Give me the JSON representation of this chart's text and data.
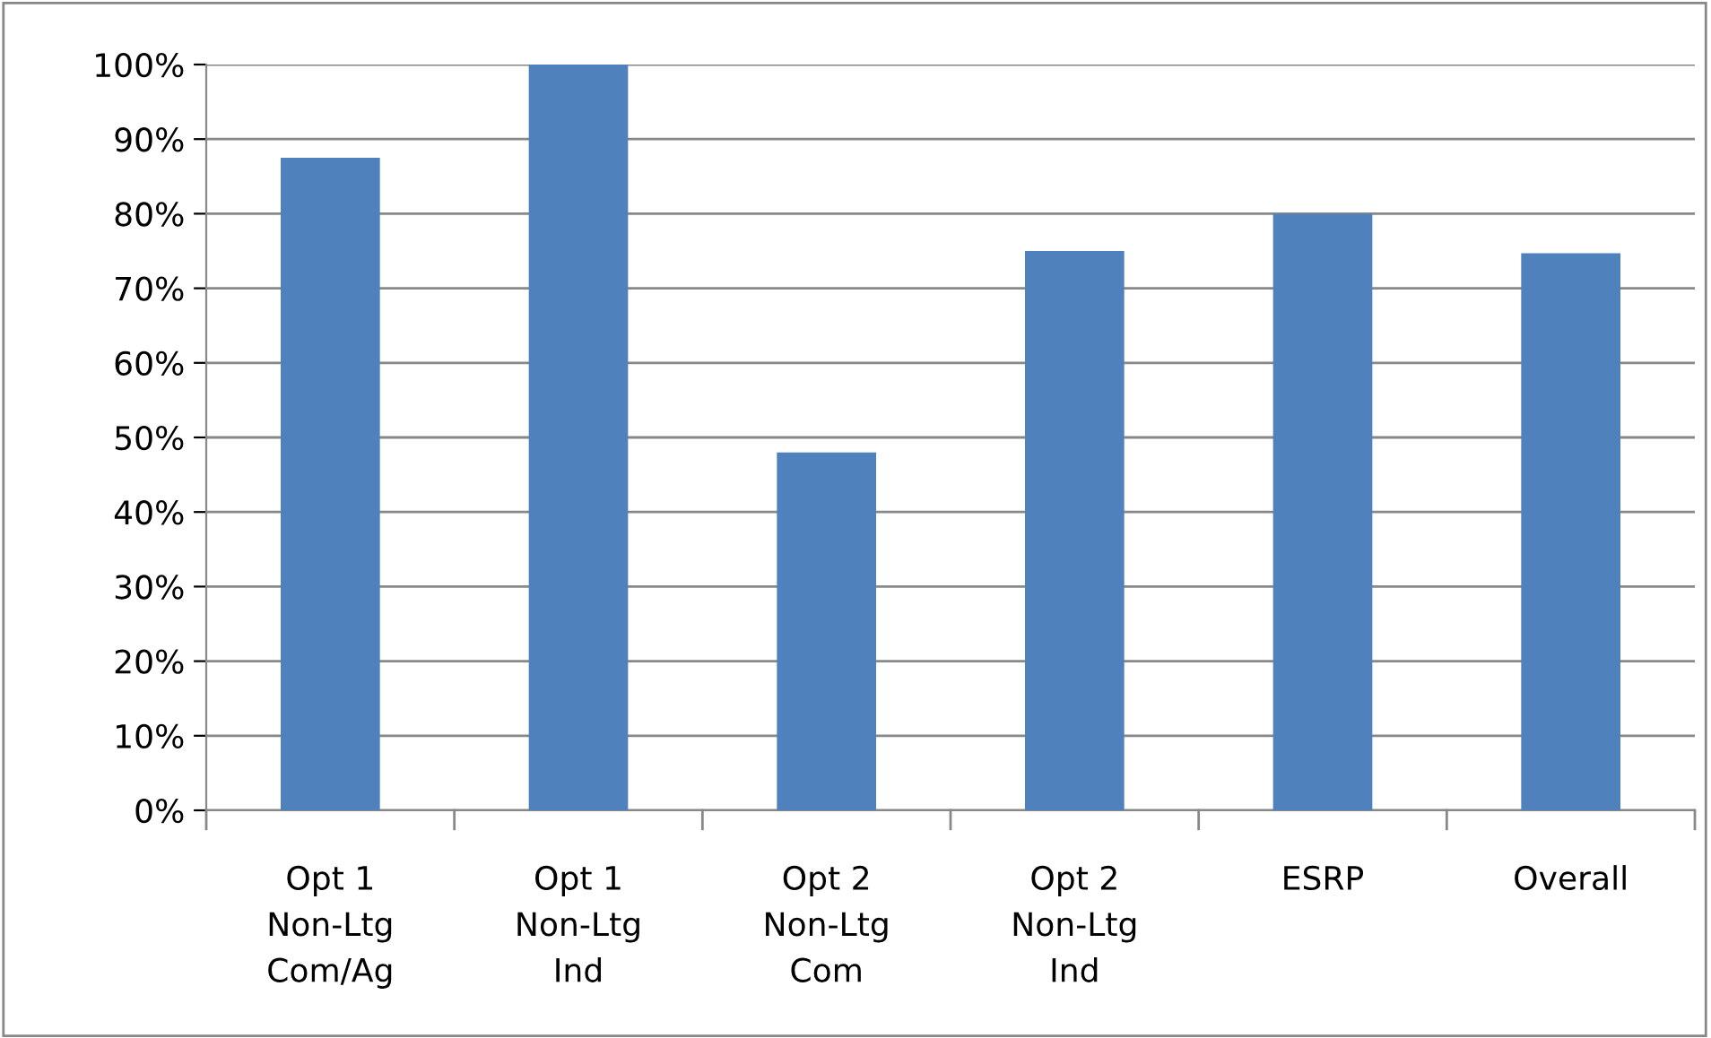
{
  "chart_data": {
    "type": "bar",
    "categories": [
      "Opt 1\nNon-Ltg\nCom/Ag",
      "Opt 1\nNon-Ltg\nInd",
      "Opt 2\nNon-Ltg\nCom",
      "Opt 2\nNon-Ltg\nInd",
      "ESRP",
      "Overall"
    ],
    "values": [
      87.5,
      100,
      48,
      75,
      80,
      74.7
    ],
    "color": "#4f81bd",
    "ylim": [
      0,
      100
    ],
    "yticks": [
      {
        "value": 0,
        "label": "0%"
      },
      {
        "value": 10,
        "label": "10%"
      },
      {
        "value": 20,
        "label": "20%"
      },
      {
        "value": 30,
        "label": "30%"
      },
      {
        "value": 40,
        "label": "40%"
      },
      {
        "value": 50,
        "label": "50%"
      },
      {
        "value": 60,
        "label": "60%"
      },
      {
        "value": 70,
        "label": "70%"
      },
      {
        "value": 80,
        "label": "80%"
      },
      {
        "value": 90,
        "label": "90%"
      },
      {
        "value": 100,
        "label": "100%"
      }
    ],
    "grid": "y",
    "legend": false
  }
}
